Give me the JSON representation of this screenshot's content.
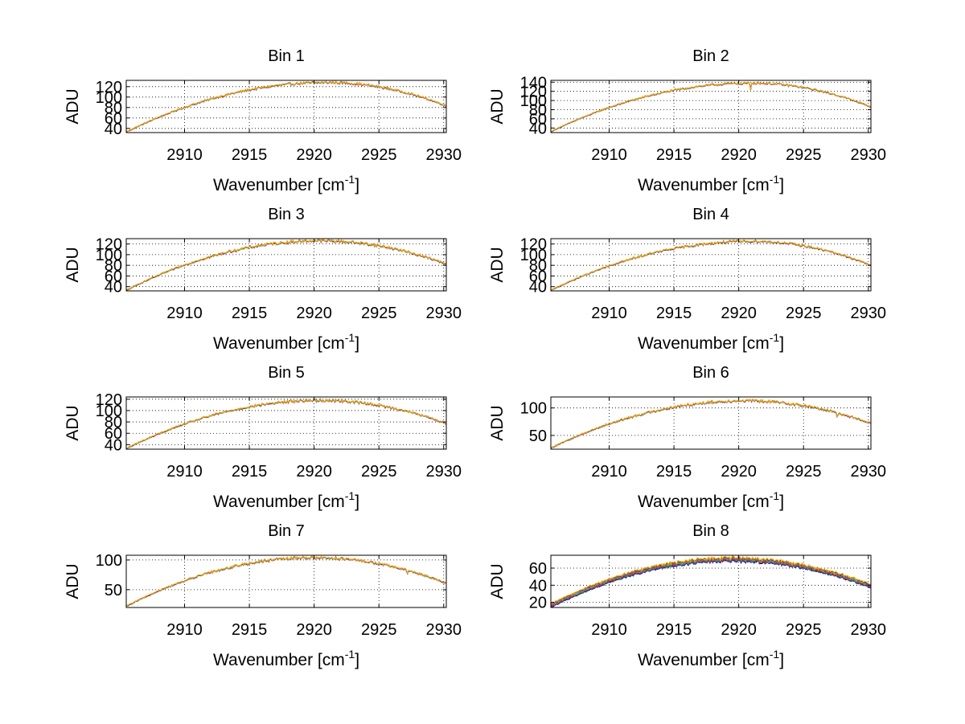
{
  "figure": {
    "xlabel_main": "Wavenumber [cm",
    "xlabel_sup": "-1",
    "xlabel_end": "]",
    "ylabel": "ADU",
    "series_colors": [
      "#0000ff",
      "#008000",
      "#ff0000",
      "#00bfbf",
      "#bf00bf",
      "#bfbf00",
      "#404040",
      "#ffa500"
    ]
  },
  "chart_data": [
    {
      "type": "line",
      "title": "Bin 1",
      "xlim": [
        2905.5,
        2930.2
      ],
      "ylim": [
        32,
        132
      ],
      "xticks": [
        2910,
        2915,
        2920,
        2925,
        2930
      ],
      "xtick_labels": [
        "2910",
        "2915",
        "2920",
        "2925",
        "2930"
      ],
      "yticks": [
        40,
        60,
        80,
        100,
        120
      ],
      "ytick_labels": [
        "40",
        "60",
        "80",
        "100",
        "120"
      ],
      "grid": true,
      "series_profile": {
        "x_start": 2905.5,
        "x_end": 2930.2,
        "y_start": 33,
        "y_peak": 128,
        "x_peak": 2921,
        "y_end": 83,
        "noise": 2.2,
        "spread": 0.8,
        "dips": []
      }
    },
    {
      "type": "line",
      "title": "Bin 2",
      "xlim": [
        2905.5,
        2930.2
      ],
      "ylim": [
        30,
        144
      ],
      "xticks": [
        2910,
        2915,
        2920,
        2925,
        2930
      ],
      "xtick_labels": [
        "2910",
        "2915",
        "2920",
        "2925",
        "2930"
      ],
      "yticks": [
        40,
        60,
        80,
        100,
        120,
        140
      ],
      "ytick_labels": [
        "40",
        "60",
        "80",
        "100",
        "120",
        "140"
      ],
      "grid": true,
      "series_profile": {
        "x_start": 2905.5,
        "x_end": 2930.2,
        "y_start": 32,
        "y_peak": 138,
        "x_peak": 2921,
        "y_end": 86,
        "noise": 2.2,
        "spread": 0.8,
        "dips": [
          [
            2920.9,
            18
          ],
          [
            2920.2,
            6
          ]
        ]
      }
    },
    {
      "type": "line",
      "title": "Bin 3",
      "xlim": [
        2905.5,
        2930.2
      ],
      "ylim": [
        32,
        130
      ],
      "xticks": [
        2910,
        2915,
        2920,
        2925,
        2930
      ],
      "xtick_labels": [
        "2910",
        "2915",
        "2920",
        "2925",
        "2930"
      ],
      "yticks": [
        40,
        60,
        80,
        100,
        120
      ],
      "ytick_labels": [
        "40",
        "60",
        "80",
        "100",
        "120"
      ],
      "grid": true,
      "series_profile": {
        "x_start": 2905.5,
        "x_end": 2930.2,
        "y_start": 33,
        "y_peak": 126,
        "x_peak": 2920.5,
        "y_end": 82,
        "noise": 2.6,
        "spread": 0.8,
        "dips": []
      }
    },
    {
      "type": "line",
      "title": "Bin 4",
      "xlim": [
        2905.5,
        2930.2
      ],
      "ylim": [
        32,
        130
      ],
      "xticks": [
        2910,
        2915,
        2920,
        2925,
        2930
      ],
      "xtick_labels": [
        "2910",
        "2915",
        "2920",
        "2925",
        "2930"
      ],
      "yticks": [
        40,
        60,
        80,
        100,
        120
      ],
      "ytick_labels": [
        "40",
        "60",
        "80",
        "100",
        "120"
      ],
      "grid": true,
      "series_profile": {
        "x_start": 2905.5,
        "x_end": 2930.2,
        "y_start": 33,
        "y_peak": 125,
        "x_peak": 2921,
        "y_end": 80,
        "noise": 2.2,
        "spread": 0.8,
        "dips": []
      }
    },
    {
      "type": "line",
      "title": "Bin 5",
      "xlim": [
        2905.5,
        2930.2
      ],
      "ylim": [
        32,
        124
      ],
      "xticks": [
        2910,
        2915,
        2920,
        2925,
        2930
      ],
      "xtick_labels": [
        "2910",
        "2915",
        "2920",
        "2925",
        "2930"
      ],
      "yticks": [
        40,
        60,
        80,
        100,
        120
      ],
      "ytick_labels": [
        "40",
        "60",
        "80",
        "100",
        "120"
      ],
      "grid": true,
      "series_profile": {
        "x_start": 2905.5,
        "x_end": 2930.2,
        "y_start": 33,
        "y_peak": 118,
        "x_peak": 2920.5,
        "y_end": 77,
        "noise": 2.2,
        "spread": 0.8,
        "dips": []
      }
    },
    {
      "type": "line",
      "title": "Bin 6",
      "xlim": [
        2905.5,
        2930.2
      ],
      "ylim": [
        25,
        120
      ],
      "xticks": [
        2910,
        2915,
        2920,
        2925,
        2930
      ],
      "xtick_labels": [
        "2910",
        "2915",
        "2920",
        "2925",
        "2930"
      ],
      "yticks": [
        50,
        100
      ],
      "ytick_labels": [
        "50",
        "100"
      ],
      "grid": true,
      "series_profile": {
        "x_start": 2905.5,
        "x_end": 2930.2,
        "y_start": 27,
        "y_peak": 113,
        "x_peak": 2920.5,
        "y_end": 72,
        "noise": 2.4,
        "spread": 0.8,
        "dips": [
          [
            2927.6,
            8
          ]
        ]
      }
    },
    {
      "type": "line",
      "title": "Bin 7",
      "xlim": [
        2905.5,
        2930.2
      ],
      "ylim": [
        20,
        108
      ],
      "xticks": [
        2910,
        2915,
        2920,
        2925,
        2930
      ],
      "xtick_labels": [
        "2910",
        "2915",
        "2920",
        "2925",
        "2930"
      ],
      "yticks": [
        50,
        100
      ],
      "ytick_labels": [
        "50",
        "100"
      ],
      "grid": true,
      "series_profile": {
        "x_start": 2905.5,
        "x_end": 2930.2,
        "y_start": 22,
        "y_peak": 104,
        "x_peak": 2920,
        "y_end": 61,
        "noise": 2.2,
        "spread": 0.8,
        "dips": [
          [
            2927.2,
            7
          ]
        ]
      }
    },
    {
      "type": "line",
      "title": "Bin 8",
      "xlim": [
        2905.5,
        2930.2
      ],
      "ylim": [
        14,
        75
      ],
      "xticks": [
        2910,
        2915,
        2920,
        2925,
        2930
      ],
      "xtick_labels": [
        "2910",
        "2915",
        "2920",
        "2925",
        "2930"
      ],
      "yticks": [
        20,
        40,
        60
      ],
      "ytick_labels": [
        "20",
        "40",
        "60"
      ],
      "grid": true,
      "series_profile": {
        "x_start": 2905.5,
        "x_end": 2930.2,
        "y_start": 16,
        "y_peak": 70,
        "x_peak": 2919.5,
        "y_end": 39,
        "noise": 1.6,
        "spread": 4.5,
        "dips": []
      }
    }
  ]
}
